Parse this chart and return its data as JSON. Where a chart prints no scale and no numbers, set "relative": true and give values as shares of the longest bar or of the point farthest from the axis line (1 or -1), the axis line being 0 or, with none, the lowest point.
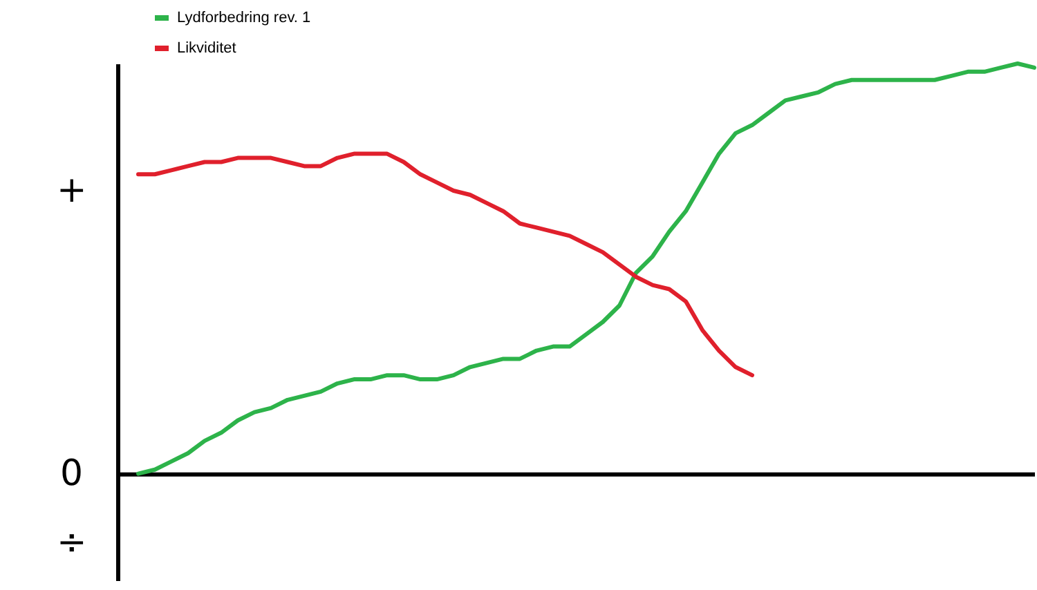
{
  "chart_data": {
    "type": "line",
    "relative": true,
    "legend": "top left",
    "marker": "none",
    "line_style": "solid",
    "annotations": [
      "+",
      "0",
      "÷"
    ],
    "categories": [
      null,
      null,
      null,
      null,
      null,
      null,
      null,
      null,
      null,
      null,
      null,
      null,
      null,
      null,
      null,
      null,
      null,
      null,
      null,
      null,
      null,
      null,
      null,
      null,
      null,
      null,
      null,
      null,
      null,
      null,
      null,
      null,
      null,
      null,
      null,
      null,
      null,
      null,
      null,
      null,
      null,
      null,
      null,
      null,
      null,
      null,
      null,
      null,
      null,
      null,
      null,
      null,
      null,
      null,
      null
    ],
    "series": [
      {
        "name": "Lydforbedring rev. 1",
        "color": "#2db34a",
        "values": [
          0,
          0.01,
          0.03,
          0.05,
          0.08,
          0.1,
          0.13,
          0.15,
          0.16,
          0.18,
          0.19,
          0.2,
          0.22,
          0.23,
          0.23,
          0.24,
          0.24,
          0.23,
          0.23,
          0.24,
          0.26,
          0.27,
          0.28,
          0.28,
          0.3,
          0.31,
          0.31,
          0.34,
          0.37,
          0.41,
          0.49,
          0.53,
          0.59,
          0.64,
          0.71,
          0.78,
          0.83,
          0.85,
          0.88,
          0.91,
          0.92,
          0.93,
          0.95,
          0.96,
          0.96,
          0.96,
          0.96,
          0.96,
          0.96,
          0.97,
          0.98,
          0.98,
          0.99,
          1.0,
          0.99
        ]
      },
      {
        "name": "Likviditet",
        "color": "#e0202c",
        "values": [
          0.73,
          0.73,
          0.74,
          0.75,
          0.76,
          0.76,
          0.77,
          0.77,
          0.77,
          0.76,
          0.75,
          0.75,
          0.77,
          0.78,
          0.78,
          0.78,
          0.76,
          0.73,
          0.71,
          0.69,
          0.68,
          0.66,
          0.64,
          0.61,
          0.6,
          0.59,
          0.58,
          0.56,
          0.54,
          0.51,
          0.48,
          0.46,
          0.45,
          0.42,
          0.35,
          0.3,
          0.26,
          0.24,
          null,
          null,
          null,
          null,
          null,
          null,
          null,
          null,
          null,
          null,
          null,
          null,
          null,
          null,
          null,
          null,
          null
        ]
      }
    ]
  }
}
